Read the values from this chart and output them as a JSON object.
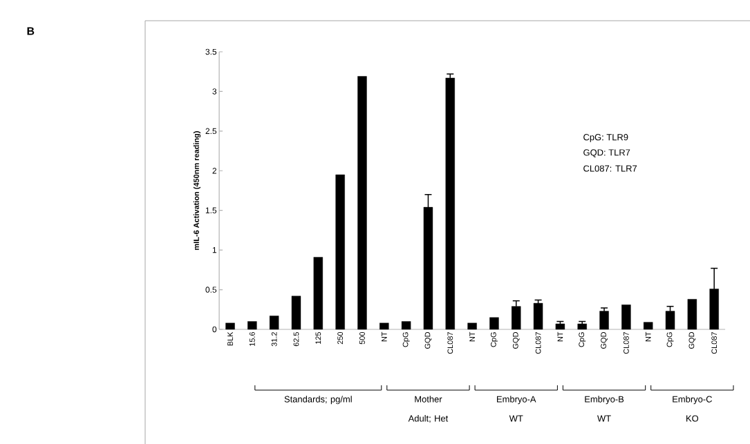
{
  "chart_data": {
    "type": "bar",
    "ylabel": "mIL-6 Activation (450nm reading)",
    "categories": [
      "BLK",
      "15.6",
      "31.2",
      "62.5",
      "125",
      "250",
      "500",
      "NT",
      "CpG",
      "GQD",
      "CL087",
      "NT",
      "CpG",
      "GQD",
      "CL087",
      "NT",
      "CpG",
      "GQD",
      "CL087",
      "NT",
      "CpG",
      "GQD",
      "CL087"
    ],
    "values": [
      0.08,
      0.1,
      0.17,
      0.42,
      0.91,
      1.95,
      3.19,
      0.08,
      0.1,
      1.54,
      3.17,
      0.08,
      0.15,
      0.29,
      0.33,
      0.07,
      0.07,
      0.23,
      0.31,
      0.09,
      0.23,
      0.38,
      0.51
    ],
    "errors": [
      null,
      null,
      null,
      null,
      null,
      null,
      null,
      null,
      null,
      0.16,
      0.05,
      null,
      null,
      0.07,
      0.04,
      0.03,
      0.03,
      0.04,
      null,
      null,
      0.06,
      null,
      0.26
    ],
    "color": "#000000",
    "ylim": [
      0,
      3.5
    ],
    "yticks": [
      0,
      0.5,
      1,
      1.5,
      2,
      2.5,
      3,
      3.5
    ],
    "grid": false,
    "annotations": [
      "B",
      "CpG: TLR9",
      "GQD: TLR7",
      "CL087: TLR7",
      "Standards; pg/ml",
      "Mother Adult; Het",
      "Embryo-A WT",
      "Embryo-B WT",
      "Embryo-C KO"
    ]
  }
}
